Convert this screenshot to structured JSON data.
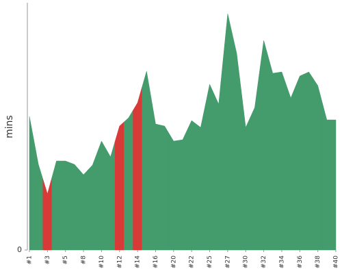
{
  "chart_data": {
    "type": "area",
    "y_label": "mins",
    "categories": [
      "#1",
      null,
      "#3",
      null,
      "#5",
      null,
      "#8",
      null,
      "#10",
      null,
      "#12",
      null,
      "#14",
      null,
      "#16",
      null,
      "#20",
      null,
      "#22",
      null,
      "#25",
      null,
      "#27",
      null,
      "#30",
      null,
      "#32",
      null,
      "#34",
      null,
      "#36",
      null,
      "#38",
      null,
      "#40"
    ],
    "values": [
      19.5,
      12.5,
      8.2,
      13,
      13,
      12.5,
      11,
      12.4,
      15.9,
      13.6,
      18.1,
      19.3,
      21.5,
      26.1,
      18.4,
      18.1,
      15.9,
      16.1,
      18.9,
      17.9,
      24.2,
      21.3,
      34.5,
      28.7,
      17.9,
      20.8,
      30.6,
      25.8,
      26,
      22.2,
      25.4,
      26,
      24,
      19,
      19
    ],
    "colors": [
      "#449b6c",
      "#449b6c",
      "#d73a37",
      "#449b6c",
      "#449b6c",
      "#449b6c",
      "#449b6c",
      "#449b6c",
      "#449b6c",
      "#449b6c",
      "#d73a37",
      "#449b6c",
      "#d73a37",
      "#449b6c",
      "#449b6c",
      "#449b6c",
      "#449b6c",
      "#449b6c",
      "#449b6c",
      "#449b6c",
      "#449b6c",
      "#449b6c",
      "#449b6c",
      "#449b6c",
      "#449b6c",
      "#449b6c",
      "#449b6c",
      "#449b6c",
      "#449b6c",
      "#449b6c",
      "#449b6c",
      "#449b6c",
      "#449b6c",
      "#449b6c",
      "#449b6c"
    ],
    "ylim": [
      0,
      36
    ],
    "yticks": [
      0
    ]
  }
}
